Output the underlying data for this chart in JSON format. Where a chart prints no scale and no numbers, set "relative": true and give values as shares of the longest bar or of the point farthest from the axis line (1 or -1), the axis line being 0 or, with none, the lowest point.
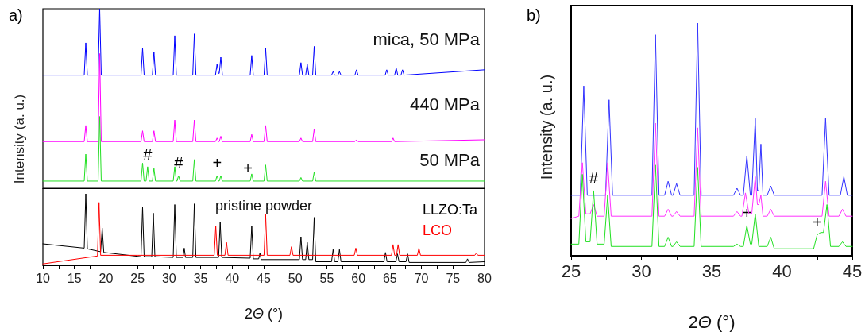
{
  "chart_data": [
    {
      "type": "line",
      "title": "a)",
      "ylabel": "Intensity (a. u.)",
      "relative": true,
      "xlim": [
        10,
        80
      ],
      "tick_labels": false,
      "marker": "none",
      "line_style": "solid",
      "series": [
        {
          "name": "mica, 50 MPa",
          "color": "#0000ff",
          "x": [
            10,
            16.55,
            16.8,
            17.05,
            18.75,
            19,
            19.25,
            25.55,
            25.8,
            26.05,
            27.35,
            27.6,
            27.85,
            30.65,
            30.9,
            31.15,
            33.75,
            34,
            34.25,
            37.35,
            37.6,
            37.85,
            37.95,
            38.2,
            38.45,
            42.85,
            43.1,
            43.35,
            45.05,
            45.3,
            45.55,
            50.65,
            50.9,
            51.15,
            51.65,
            51.9,
            52.15,
            52.75,
            53,
            53.25,
            55.75,
            56,
            56.25,
            56.75,
            57,
            57.25,
            59.45,
            59.7,
            59.95,
            64.25,
            64.5,
            64.75,
            65.75,
            66,
            66.25,
            66.75,
            67,
            67.25,
            80
          ],
          "values": [
            0.63,
            0.63,
            0.81,
            0.63,
            0.63,
            1,
            0.63,
            0.63,
            0.78,
            0.63,
            0.63,
            0.76,
            0.63,
            0.63,
            0.85,
            0.63,
            0.63,
            0.86,
            0.63,
            0.63,
            0.69,
            0.64,
            0.64,
            0.73,
            0.63,
            0.63,
            0.74,
            0.63,
            0.63,
            0.78,
            0.63,
            0.63,
            0.7,
            0.63,
            0.63,
            0.69,
            0.63,
            0.63,
            0.79,
            0.63,
            0.63,
            0.65,
            0.63,
            0.63,
            0.65,
            0.63,
            0.63,
            0.66,
            0.63,
            0.63,
            0.66,
            0.63,
            0.63,
            0.67,
            0.63,
            0.63,
            0.66,
            0.63,
            0.66
          ]
        },
        {
          "name": "440 MPa",
          "color": "#ff00ff",
          "x": [
            10,
            16.55,
            16.8,
            17.05,
            18.75,
            19,
            19.25,
            25.55,
            25.8,
            26.05,
            27.35,
            27.6,
            27.85,
            30.65,
            30.9,
            31.15,
            33.75,
            34,
            34.25,
            37.35,
            37.6,
            37.85,
            37.95,
            38.2,
            38.45,
            42.85,
            43.1,
            43.35,
            45.05,
            45.3,
            45.55,
            50.65,
            50.9,
            51.15,
            52.75,
            53,
            53.25,
            59.45,
            59.7,
            59.95,
            65.25,
            65.5,
            65.75,
            80
          ],
          "values": [
            0.26,
            0.26,
            0.35,
            0.26,
            0.26,
            0.75,
            0.26,
            0.26,
            0.32,
            0.26,
            0.26,
            0.32,
            0.26,
            0.26,
            0.38,
            0.26,
            0.26,
            0.38,
            0.26,
            0.26,
            0.28,
            0.26,
            0.26,
            0.29,
            0.26,
            0.26,
            0.3,
            0.26,
            0.26,
            0.35,
            0.26,
            0.26,
            0.28,
            0.26,
            0.26,
            0.33,
            0.26,
            0.26,
            0.27,
            0.26,
            0.26,
            0.28,
            0.26,
            0.27
          ]
        },
        {
          "name": "50 MPa",
          "color": "#22e022",
          "x": [
            10,
            16.55,
            16.8,
            17.05,
            18.75,
            19,
            19.25,
            25.55,
            25.8,
            26.05,
            26.35,
            26.6,
            26.85,
            27.35,
            27.6,
            27.85,
            30.65,
            30.9,
            31.15,
            31.25,
            31.5,
            31.75,
            33.75,
            34,
            34.25,
            37.35,
            37.6,
            37.85,
            37.95,
            38.2,
            38.45,
            42.85,
            43.1,
            43.35,
            45.05,
            45.3,
            45.55,
            50.65,
            50.9,
            51.15,
            52.75,
            53,
            53.25,
            80
          ],
          "values": [
            0.04,
            0.04,
            0.19,
            0.04,
            0.04,
            0.4,
            0.04,
            0.04,
            0.14,
            0.04,
            0.04,
            0.12,
            0.04,
            0.04,
            0.11,
            0.04,
            0.04,
            0.12,
            0.04,
            0.04,
            0.07,
            0.04,
            0.04,
            0.16,
            0.04,
            0.04,
            0.07,
            0.04,
            0.04,
            0.07,
            0.04,
            0.04,
            0.08,
            0.04,
            0.04,
            0.13,
            0.04,
            0.04,
            0.06,
            0.04,
            0.04,
            0.09,
            0.04,
            0.04
          ]
        }
      ],
      "annotations": [
        {
          "text": "#",
          "x": 26.6,
          "y": 0.12
        },
        {
          "text": "#",
          "x": 31.5,
          "y": 0.07
        },
        {
          "text": "+",
          "x": 37.6,
          "y": 0.07
        },
        {
          "text": "+",
          "x": 42.5,
          "y": 0.04
        }
      ]
    },
    {
      "type": "line",
      "xlabel": "2Θ (°)",
      "relative": true,
      "xlim": [
        10,
        80
      ],
      "tick_labels": "x",
      "marker": "none",
      "line_style": "solid",
      "legend": "top right",
      "xticks": [
        10,
        {
          "value": 12.5,
          "label": null
        },
        15,
        {
          "value": 17.5,
          "label": null
        },
        20,
        {
          "value": 22.5,
          "label": null
        },
        25,
        {
          "value": 27.5,
          "label": null
        },
        30,
        {
          "value": 32.5,
          "label": null
        },
        35,
        {
          "value": 37.5,
          "label": null
        },
        40,
        {
          "value": 42.5,
          "label": null
        },
        45,
        {
          "value": 47.5,
          "label": null
        },
        50,
        {
          "value": 52.5,
          "label": null
        },
        55,
        {
          "value": 57.5,
          "label": null
        },
        60,
        {
          "value": 62.5,
          "label": null
        },
        65,
        {
          "value": 67.5,
          "label": null
        },
        70,
        {
          "value": 72.5,
          "label": null
        },
        75,
        {
          "value": 77.5,
          "label": null
        },
        80
      ],
      "series": [
        {
          "name": "LLZO:Ta",
          "color": "#000000",
          "x": [
            10,
            16.55,
            16.8,
            17.05,
            19.15,
            19.4,
            19.65,
            25.55,
            25.8,
            26.05,
            27.25,
            27.5,
            27.75,
            30.65,
            30.9,
            31.15,
            32.2,
            32.4,
            32.6,
            33.75,
            34,
            34.25,
            37.85,
            38.1,
            38.35,
            42.85,
            43.1,
            43.35,
            44.2,
            44.4,
            44.6,
            50.65,
            50.9,
            51.15,
            51.65,
            51.9,
            52.15,
            52.75,
            53,
            53.25,
            55.75,
            56,
            56.25,
            56.75,
            57,
            57.25,
            64.05,
            64.3,
            64.55,
            65.95,
            66.2,
            66.45,
            67.55,
            67.8,
            68.05,
            77.05,
            77.3,
            77.55,
            80
          ],
          "values": [
            0.3,
            0.24,
            1,
            0.23,
            0.19,
            0.52,
            0.18,
            0.12,
            0.81,
            0.12,
            0.12,
            0.73,
            0.12,
            0.11,
            0.85,
            0.11,
            0.11,
            0.24,
            0.11,
            0.11,
            0.86,
            0.11,
            0.11,
            0.6,
            0.11,
            0.1,
            0.55,
            0.09,
            0.09,
            0.17,
            0.08,
            0.08,
            0.4,
            0.08,
            0.08,
            0.32,
            0.08,
            0.08,
            0.67,
            0.05,
            0.05,
            0.22,
            0.05,
            0.05,
            0.22,
            0.05,
            0.05,
            0.18,
            0.05,
            0.05,
            0.16,
            0.05,
            0.05,
            0.16,
            0.04,
            0.04,
            0.09,
            0.04,
            0.05
          ]
        },
        {
          "name": "LCO",
          "color": "#ff0000",
          "x": [
            10,
            18.65,
            18.9,
            19.15,
            25,
            37.15,
            37.4,
            37.65,
            38.85,
            39.1,
            39.35,
            45.05,
            45.3,
            45.55,
            49.15,
            49.4,
            49.65,
            59.35,
            59.6,
            59.85,
            65.25,
            65.5,
            65.75,
            66.05,
            66.3,
            66.55,
            69.35,
            69.6,
            69.85,
            78.45,
            78.7,
            78.95,
            80
          ],
          "values": [
            0.02,
            0.13,
            0.88,
            0.14,
            0.14,
            0.14,
            0.55,
            0.14,
            0.14,
            0.32,
            0.14,
            0.14,
            0.71,
            0.14,
            0.14,
            0.26,
            0.14,
            0.14,
            0.24,
            0.14,
            0.14,
            0.29,
            0.14,
            0.14,
            0.29,
            0.14,
            0.14,
            0.24,
            0.14,
            0.14,
            0.17,
            0.14,
            0.14
          ]
        }
      ],
      "annotations": [
        "pristine powder"
      ]
    },
    {
      "type": "line",
      "title": "b)",
      "xlabel": "2Θ (°)",
      "ylabel": "Intensity (a. u.)",
      "relative": true,
      "xlim": [
        25,
        45
      ],
      "marker": "none",
      "line_style": "solid",
      "xticks": [
        25,
        {
          "value": 27.5,
          "label": null
        },
        30,
        {
          "value": 32.5,
          "label": null
        },
        35,
        {
          "value": 37.5,
          "label": null
        },
        40,
        {
          "value": 42.5,
          "label": null
        },
        45
      ],
      "series": [
        {
          "color": "#3333ff",
          "x": [
            25,
            25.65,
            25.9,
            26.15,
            27.45,
            27.7,
            27.95,
            30.75,
            31,
            31.25,
            31.65,
            31.9,
            32.15,
            32.25,
            32.5,
            32.75,
            33.75,
            34,
            34.25,
            36.55,
            36.8,
            37.05,
            37.25,
            37.5,
            37.75,
            37.85,
            38.1,
            38.25,
            38.35,
            38.5,
            38.65,
            38.95,
            39.2,
            39.45,
            42.85,
            43.1,
            43.35,
            44.15,
            44.4,
            44.65,
            45
          ],
          "values": [
            0.26,
            0.26,
            0.73,
            0.26,
            0.26,
            0.67,
            0.26,
            0.26,
            0.95,
            0.26,
            0.26,
            0.32,
            0.26,
            0.26,
            0.31,
            0.26,
            0.26,
            1,
            0.26,
            0.26,
            0.29,
            0.26,
            0.26,
            0.43,
            0.26,
            0.26,
            0.59,
            0.28,
            0.28,
            0.48,
            0.26,
            0.26,
            0.3,
            0.26,
            0.26,
            0.59,
            0.26,
            0.26,
            0.34,
            0.26,
            0.26
          ]
        },
        {
          "color": "#ff33ff",
          "x": [
            25,
            25.55,
            25.8,
            26.05,
            26.35,
            26.6,
            26.85,
            27.35,
            27.6,
            27.85,
            30.75,
            31,
            31.25,
            31.65,
            31.9,
            32.15,
            32.25,
            32.5,
            32.75,
            33.75,
            34,
            34.25,
            36.55,
            36.8,
            37.05,
            37.15,
            37.4,
            37.65,
            37.85,
            38.1,
            38.25,
            38.35,
            38.5,
            38.65,
            38.95,
            39.2,
            39.45,
            42.85,
            43.1,
            43.35,
            44.05,
            44.3,
            44.55,
            45
          ],
          "values": [
            0.16,
            0.17,
            0.4,
            0.18,
            0.18,
            0.22,
            0.17,
            0.17,
            0.4,
            0.17,
            0.17,
            0.57,
            0.17,
            0.17,
            0.2,
            0.17,
            0.17,
            0.19,
            0.17,
            0.17,
            0.55,
            0.17,
            0.17,
            0.19,
            0.17,
            0.17,
            0.27,
            0.18,
            0.18,
            0.34,
            0.22,
            0.22,
            0.26,
            0.17,
            0.17,
            0.2,
            0.17,
            0.17,
            0.32,
            0.17,
            0.17,
            0.2,
            0.17,
            0.17
          ]
        },
        {
          "color": "#22e022",
          "x": [
            25,
            25.55,
            25.8,
            26.05,
            26.35,
            26.6,
            26.85,
            27.35,
            27.6,
            27.85,
            30.75,
            31,
            31.25,
            31.65,
            31.9,
            32.15,
            32.25,
            32.5,
            32.75,
            33.75,
            34,
            34.25,
            36.55,
            36.8,
            37.05,
            37.25,
            37.5,
            37.75,
            37.85,
            38.1,
            38.35,
            38.95,
            39.2,
            39.45,
            42.25,
            42.5,
            42.75,
            42.95,
            43.2,
            43.45,
            44.05,
            44.3,
            44.55,
            45
          ],
          "values": [
            0.05,
            0.05,
            0.35,
            0.06,
            0.06,
            0.28,
            0.05,
            0.05,
            0.26,
            0.04,
            0.04,
            0.39,
            0.04,
            0.04,
            0.08,
            0.04,
            0.04,
            0.06,
            0.04,
            0.04,
            0.38,
            0.04,
            0.04,
            0.05,
            0.04,
            0.04,
            0.13,
            0.05,
            0.05,
            0.18,
            0.04,
            0.04,
            0.08,
            0.03,
            0.03,
            0.09,
            0.1,
            0.1,
            0.22,
            0.04,
            0.04,
            0.06,
            0.04,
            0.04
          ]
        }
      ],
      "annotations": [
        {
          "text": "#",
          "x": 26.6,
          "y": 0.28
        },
        {
          "text": "+",
          "x": 37.5,
          "y": 0.13
        },
        {
          "text": "+",
          "x": 42.5,
          "y": 0.09
        }
      ]
    }
  ]
}
